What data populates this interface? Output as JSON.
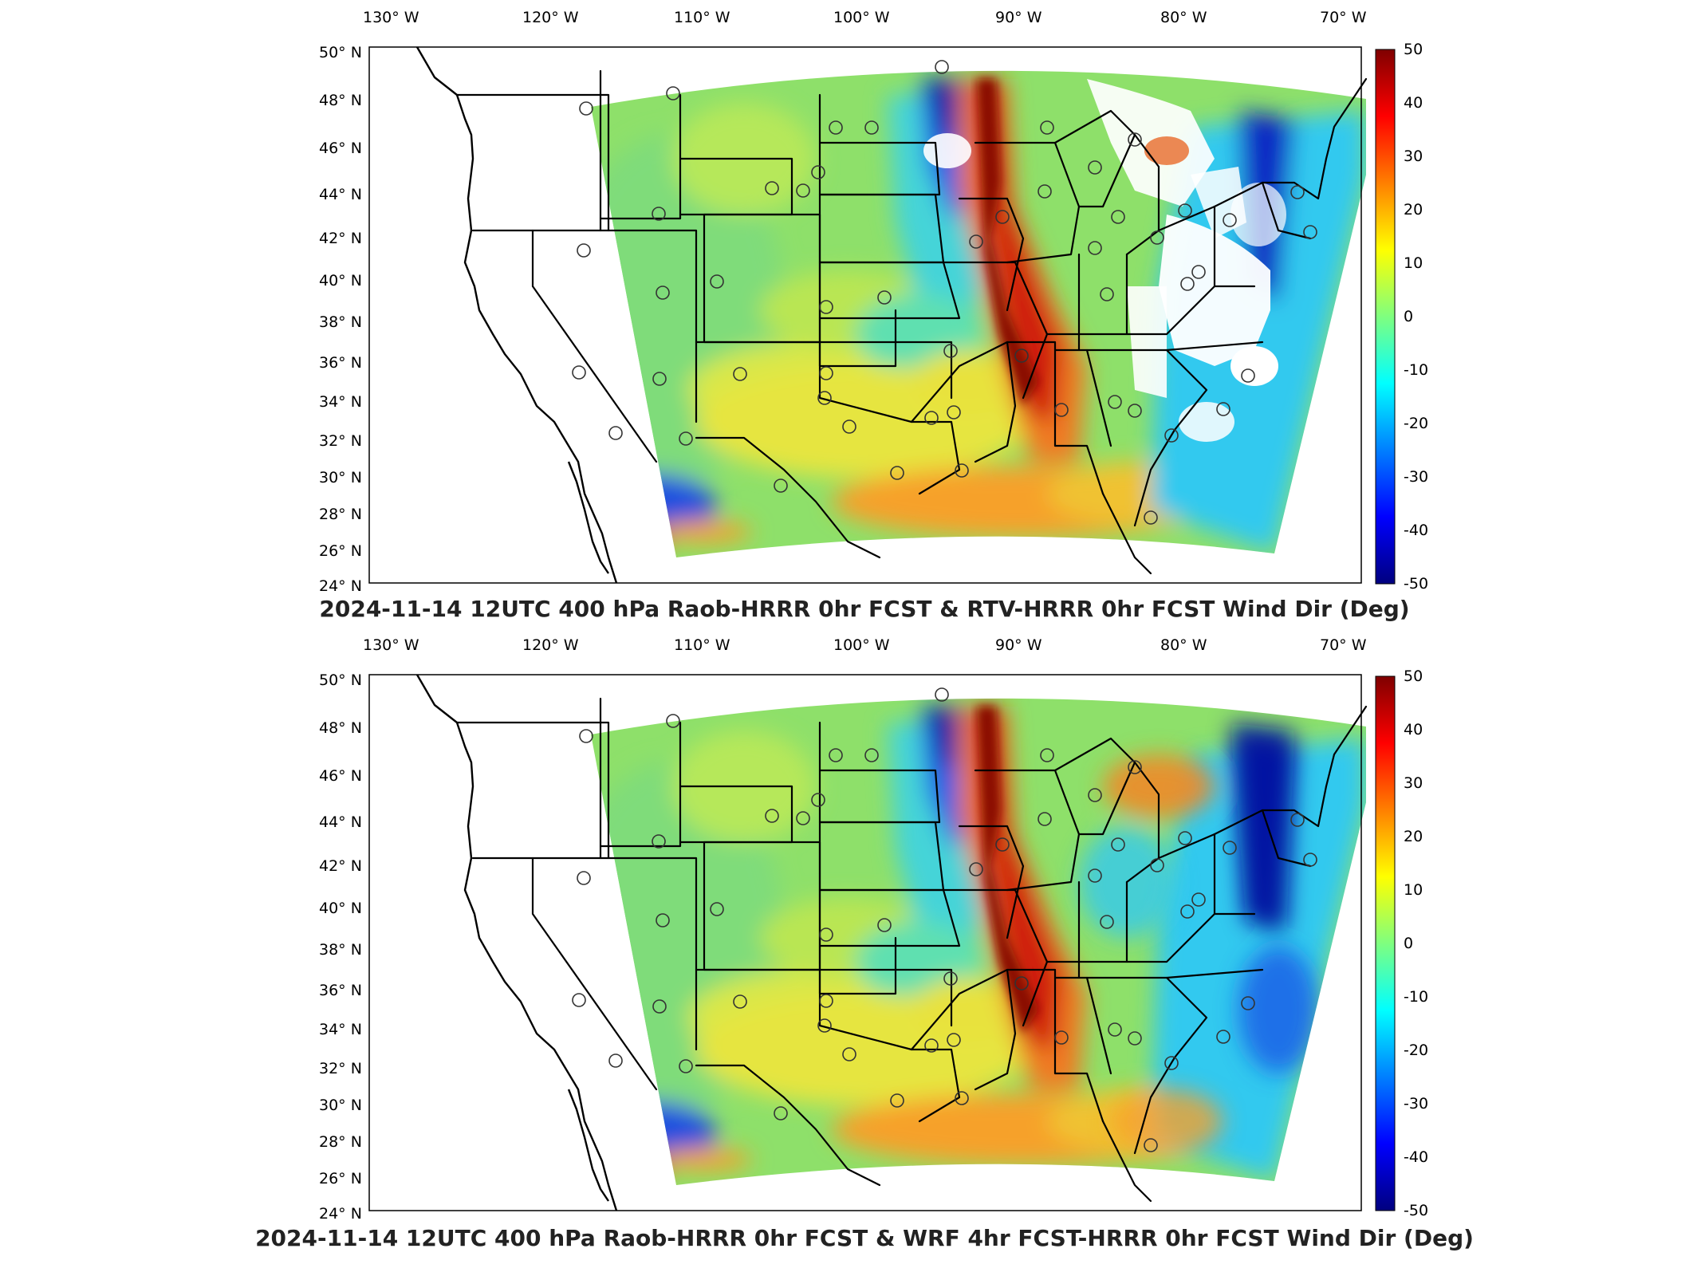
{
  "figure": {
    "panels": [
      {
        "id": "top",
        "title": "2024-11-14 12UTC 400 hPa Raob-HRRR 0hr FCST & RTV-HRRR 0hr FCST Wind Dir (Deg)",
        "lon_labels": [
          "130° W",
          "120° W",
          "110° W",
          "100° W",
          "90° W",
          "80° W",
          "70° W"
        ],
        "lat_labels": [
          "50° N",
          "48° N",
          "46° N",
          "44° N",
          "42° N",
          "40° N",
          "38° N",
          "36° N",
          "34° N",
          "32° N",
          "30° N",
          "28° N",
          "26° N",
          "24° N"
        ],
        "colorbar": {
          "ticks": [
            "50",
            "40",
            "30",
            "20",
            "10",
            "0",
            "-10",
            "-20",
            "-30",
            "-40",
            "-50"
          ]
        },
        "missing_data": true
      },
      {
        "id": "bottom",
        "title": "2024-11-14 12UTC 400 hPa Raob-HRRR 0hr FCST & WRF 4hr FCST-HRRR 0hr FCST Wind Dir (Deg)",
        "lon_labels": [
          "130° W",
          "120° W",
          "110° W",
          "100° W",
          "90° W",
          "80° W",
          "70° W"
        ],
        "lat_labels": [
          "50° N",
          "48° N",
          "46° N",
          "44° N",
          "42° N",
          "40° N",
          "38° N",
          "36° N",
          "34° N",
          "32° N",
          "30° N",
          "28° N",
          "26° N",
          "24° N"
        ],
        "colorbar": {
          "ticks": [
            "50",
            "40",
            "30",
            "20",
            "10",
            "0",
            "-10",
            "-20",
            "-30",
            "-40",
            "-50"
          ]
        },
        "missing_data": false
      }
    ],
    "colormap": {
      "name": "jet",
      "range": [
        -50,
        50
      ],
      "stops": [
        "#00007f",
        "#0000ff",
        "#007fff",
        "#00ffff",
        "#7fff7f",
        "#ffff00",
        "#ff7f00",
        "#ff0000",
        "#7f0000"
      ]
    },
    "field_colors": {
      "green": "#8ee06a",
      "cyan_green": "#5fe0b0",
      "cyan": "#33c9ef",
      "blue": "#1a5ae6",
      "dark_blue": "#07139c",
      "yellow": "#f1ec3c",
      "orange": "#f6a12b",
      "red": "#e53a12",
      "dark_red": "#8a0a05",
      "white": "#ffffff"
    }
  }
}
